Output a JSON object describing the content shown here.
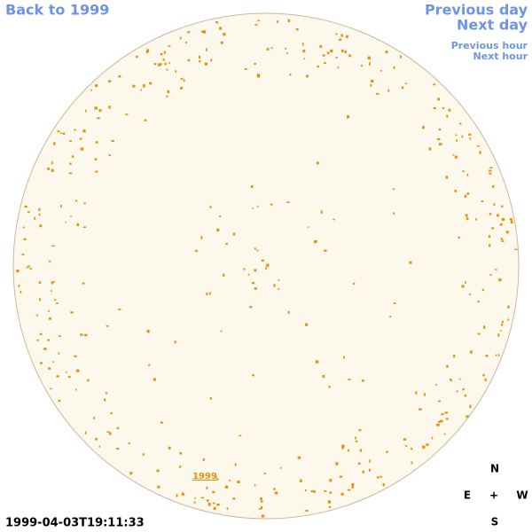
{
  "links": {
    "back": "Back to 1999",
    "previous_day": "Previous day",
    "next_day": "Next day",
    "previous_hour": "Previous hour",
    "next_hour": "Next hour",
    "year": "1999"
  },
  "compass": {
    "north": "N",
    "east": "E",
    "center": "+",
    "west": "W",
    "south": "S"
  },
  "timestamp": "1999-04-03T19:11:33"
}
